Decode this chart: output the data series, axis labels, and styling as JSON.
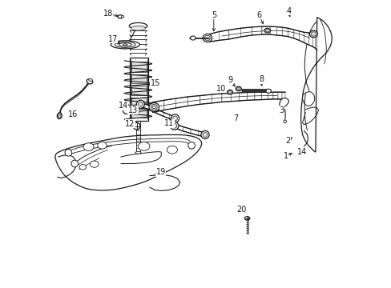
{
  "bg": "#ffffff",
  "lc": "#1a1a1a",
  "lw": 0.9,
  "fs": 7.0,
  "fig_w": 4.89,
  "fig_h": 3.6,
  "dpi": 100,
  "label_positions": {
    "18": [
      0.2,
      0.04,
      0.24,
      0.06
    ],
    "17": [
      0.215,
      0.13,
      0.255,
      0.165
    ],
    "15": [
      0.355,
      0.295,
      0.315,
      0.295
    ],
    "16": [
      0.08,
      0.395,
      0.06,
      0.37
    ],
    "13": [
      0.29,
      0.385,
      0.32,
      0.41
    ],
    "12": [
      0.27,
      0.43,
      0.295,
      0.445
    ],
    "11": [
      0.415,
      0.43,
      0.43,
      0.45
    ],
    "14c": [
      0.25,
      0.37,
      0.265,
      0.385
    ],
    "19": [
      0.38,
      0.6,
      0.355,
      0.62
    ],
    "5": [
      0.57,
      0.055,
      0.57,
      0.11
    ],
    "6": [
      0.72,
      0.055,
      0.74,
      0.09
    ],
    "4": [
      0.82,
      0.04,
      0.83,
      0.07
    ],
    "9": [
      0.62,
      0.28,
      0.645,
      0.31
    ],
    "8": [
      0.73,
      0.28,
      0.73,
      0.305
    ],
    "10": [
      0.59,
      0.31,
      0.615,
      0.325
    ],
    "7": [
      0.64,
      0.415,
      0.65,
      0.395
    ],
    "3": [
      0.8,
      0.385,
      0.795,
      0.365
    ],
    "2": [
      0.82,
      0.49,
      0.845,
      0.475
    ],
    "1": [
      0.815,
      0.545,
      0.845,
      0.53
    ],
    "14b": [
      0.87,
      0.53,
      0.88,
      0.545
    ],
    "20": [
      0.66,
      0.73,
      0.675,
      0.755
    ]
  }
}
